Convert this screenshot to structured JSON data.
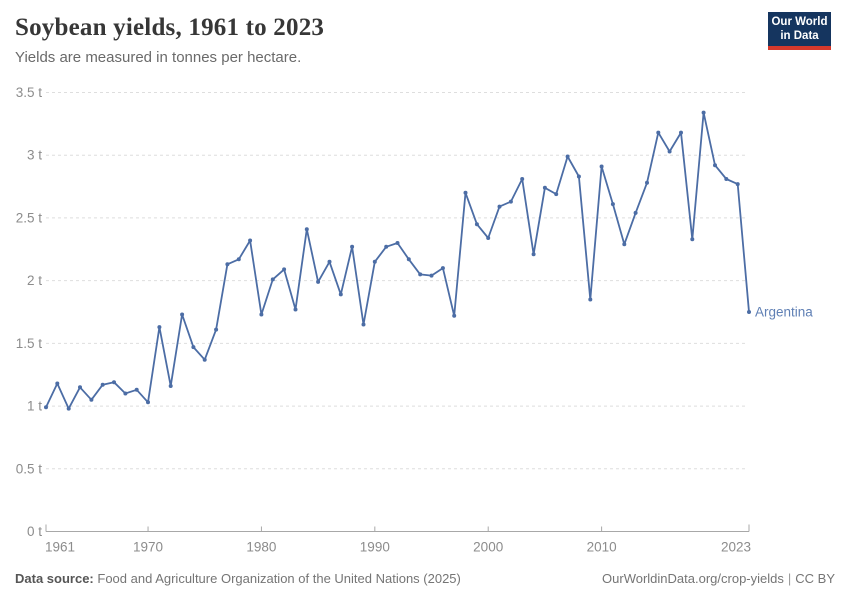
{
  "header": {
    "title": "Soybean yields, 1961 to 2023",
    "subtitle": "Yields are measured in tonnes per hectare.",
    "logo_line1": "Our World",
    "logo_line2": "in Data"
  },
  "footer": {
    "source_label": "Data source:",
    "source_text": "Food and Agriculture Organization of the United Nations (2025)",
    "link": "OurWorldinData.org/crop-yields",
    "separator": "|",
    "license": "CC BY"
  },
  "chart_data": {
    "type": "line",
    "title": "Soybean yields, 1961 to 2023",
    "unit": "t",
    "xlabel": "",
    "ylabel": "",
    "xlim": [
      1961,
      2023
    ],
    "ylim": [
      0,
      3.5
    ],
    "grid": "horizontal-dashed",
    "x_ticks": [
      1961,
      1970,
      1980,
      1990,
      2000,
      2010,
      2023
    ],
    "y_ticks": [
      0,
      0.5,
      1,
      1.5,
      2,
      2.5,
      3,
      3.5
    ],
    "entity_label": "Argentina",
    "series": [
      {
        "name": "Argentina",
        "color": "#4c6da5",
        "label_color": "#6080b5",
        "x": [
          1961,
          1962,
          1963,
          1964,
          1965,
          1966,
          1967,
          1968,
          1969,
          1970,
          1971,
          1972,
          1973,
          1974,
          1975,
          1976,
          1977,
          1978,
          1979,
          1980,
          1981,
          1982,
          1983,
          1984,
          1985,
          1986,
          1987,
          1988,
          1989,
          1990,
          1991,
          1992,
          1993,
          1994,
          1995,
          1996,
          1997,
          1998,
          1999,
          2000,
          2001,
          2002,
          2003,
          2004,
          2005,
          2006,
          2007,
          2008,
          2009,
          2010,
          2011,
          2012,
          2013,
          2014,
          2015,
          2016,
          2017,
          2018,
          2019,
          2020,
          2021,
          2022,
          2023
        ],
        "values": [
          0.99,
          1.18,
          0.98,
          1.15,
          1.05,
          1.17,
          1.19,
          1.1,
          1.13,
          1.03,
          1.63,
          1.16,
          1.73,
          1.47,
          1.37,
          1.61,
          2.13,
          2.17,
          2.32,
          1.73,
          2.01,
          2.09,
          1.77,
          2.41,
          1.99,
          2.15,
          1.89,
          2.27,
          1.65,
          2.15,
          2.27,
          2.3,
          2.17,
          2.05,
          2.04,
          2.1,
          1.72,
          2.7,
          2.45,
          2.34,
          2.59,
          2.63,
          2.81,
          2.21,
          2.74,
          2.69,
          2.99,
          2.83,
          1.85,
          2.91,
          2.61,
          2.29,
          2.54,
          2.78,
          3.18,
          3.03,
          3.18,
          2.33,
          3.34,
          2.92,
          2.81,
          2.77,
          1.75
        ]
      }
    ],
    "colors": {
      "grid": "#dedede",
      "axis": "#a8a8a8",
      "tick_text": "#8c8c8c"
    }
  }
}
